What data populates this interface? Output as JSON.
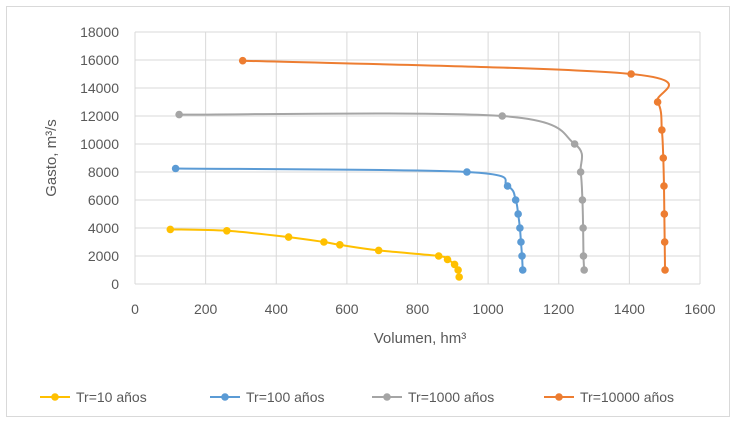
{
  "chart_data": {
    "type": "scatter",
    "xlabel": "Volumen, hm³",
    "ylabel": "Gasto, m³/s",
    "xlim": [
      0,
      1600
    ],
    "ylim": [
      0,
      18000
    ],
    "x_ticks": [
      0,
      200,
      400,
      600,
      800,
      1000,
      1200,
      1400,
      1600
    ],
    "y_ticks": [
      0,
      2000,
      4000,
      6000,
      8000,
      10000,
      12000,
      14000,
      16000,
      18000
    ],
    "grid": true,
    "legend_position": "bottom",
    "series": [
      {
        "name": "Tr=10 años",
        "color": "#FFC000",
        "points": [
          [
            100,
            3900
          ],
          [
            260,
            3800
          ],
          [
            435,
            3350
          ],
          [
            535,
            3000
          ],
          [
            580,
            2800
          ],
          [
            690,
            2400
          ],
          [
            860,
            2000
          ],
          [
            885,
            1750
          ],
          [
            905,
            1400
          ],
          [
            915,
            1000
          ],
          [
            918,
            500
          ]
        ]
      },
      {
        "name": "Tr=100 años",
        "color": "#5B9BD5",
        "points": [
          [
            115,
            8250
          ],
          [
            940,
            8000
          ],
          [
            1055,
            7000
          ],
          [
            1078,
            6000
          ],
          [
            1085,
            5000
          ],
          [
            1090,
            4000
          ],
          [
            1093,
            3000
          ],
          [
            1096,
            2000
          ],
          [
            1098,
            1000
          ]
        ]
      },
      {
        "name": "Tr=1000 años",
        "color": "#A5A5A5",
        "points": [
          [
            125,
            12100
          ],
          [
            1040,
            12000
          ],
          [
            1245,
            10000
          ],
          [
            1262,
            8000
          ],
          [
            1267,
            6000
          ],
          [
            1269,
            4000
          ],
          [
            1270,
            2000
          ],
          [
            1272,
            1000
          ]
        ]
      },
      {
        "name": "Tr=10000 años",
        "color": "#ED7D31",
        "points": [
          [
            305,
            15950
          ],
          [
            1405,
            15000
          ],
          [
            1480,
            13000
          ],
          [
            1492,
            11000
          ],
          [
            1496,
            9000
          ],
          [
            1498,
            7000
          ],
          [
            1499,
            5000
          ],
          [
            1500,
            3000
          ],
          [
            1501,
            1000
          ]
        ]
      }
    ]
  }
}
